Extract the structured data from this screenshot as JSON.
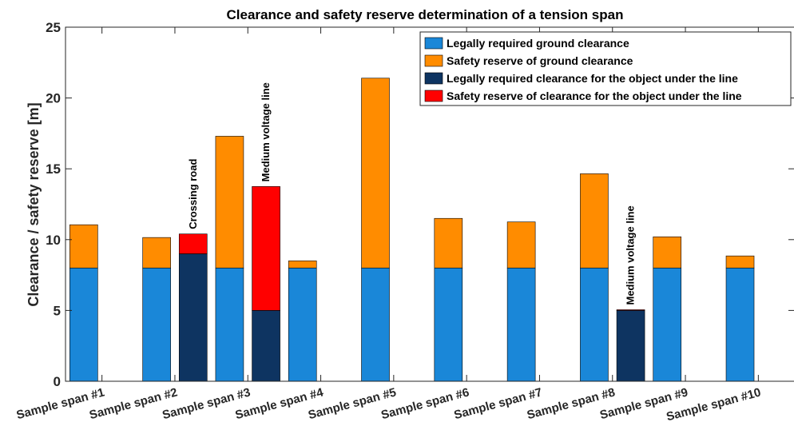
{
  "chart_data": {
    "type": "bar",
    "stacked": true,
    "title": "Clearance and safety reserve determination of a tension span",
    "xlabel": "",
    "ylabel": "Clearance / safety reserve [m]",
    "ylim": [
      0,
      25
    ],
    "yticks": [
      0,
      5,
      10,
      15,
      20,
      25
    ],
    "grid": false,
    "legend_position": "top-right",
    "categories": [
      "Sample span #1",
      "Sample span #2",
      "Sample span #3",
      "Sample span #4",
      "Sample span #5",
      "Sample span #6",
      "Sample span #7",
      "Sample span #8",
      "Sample span #9",
      "Sample span #10"
    ],
    "series": [
      {
        "name": "Legally required ground clearance",
        "color": "#1a87d8",
        "group": "ground",
        "values": [
          8,
          8,
          8,
          8,
          8,
          8,
          8,
          8,
          8,
          8
        ]
      },
      {
        "name": "Safety reserve of ground clearance",
        "color": "#ff8c00",
        "group": "ground",
        "values": [
          3.05,
          2.15,
          9.3,
          0.5,
          13.4,
          3.5,
          3.25,
          6.65,
          2.2,
          0.85
        ]
      },
      {
        "name": "Legally required clearance for the object under the line",
        "color": "#0e3461",
        "group": "object",
        "values": [
          null,
          9,
          5,
          null,
          null,
          null,
          null,
          5,
          null,
          null
        ]
      },
      {
        "name": "Safety reserve of clearance for the object under the line",
        "color": "#ff0000",
        "group": "object",
        "values": [
          null,
          1.4,
          8.75,
          null,
          null,
          null,
          null,
          0.05,
          null,
          null
        ]
      }
    ],
    "annotations": [
      {
        "text": "Crossing road",
        "category": "Sample span #2",
        "group": "object"
      },
      {
        "text": "Medium voltage line",
        "category": "Sample span #3",
        "group": "object"
      },
      {
        "text": "Medium voltage line",
        "category": "Sample span #8",
        "group": "object"
      }
    ]
  }
}
